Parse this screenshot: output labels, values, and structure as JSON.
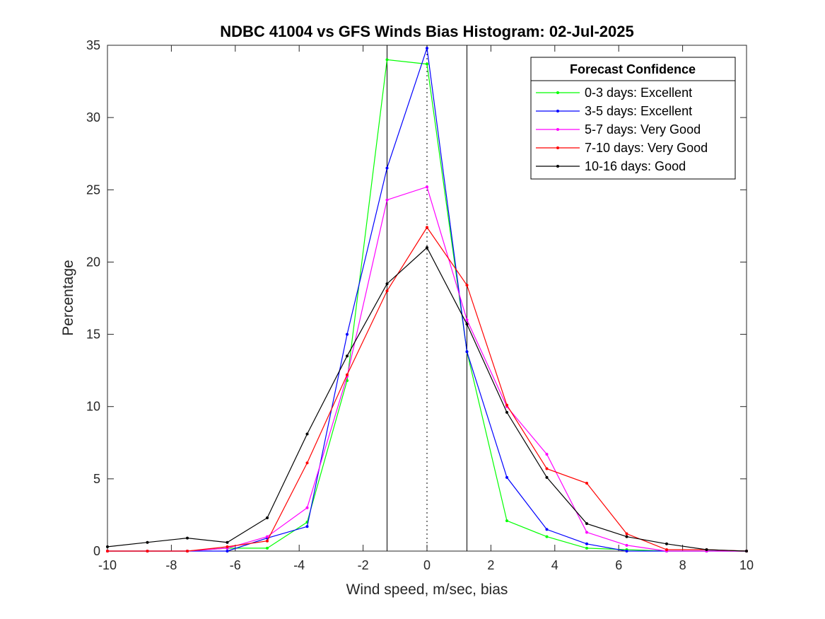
{
  "chart_data": {
    "type": "line",
    "title": "NDBC 41004 vs GFS Winds Bias Histogram: 02-Jul-2025",
    "xlabel": "Wind speed, m/sec, bias",
    "ylabel": "Percentage",
    "xlim": [
      -10,
      10
    ],
    "ylim": [
      0,
      35
    ],
    "xticks": [
      -10,
      -8,
      -6,
      -4,
      -2,
      0,
      2,
      4,
      6,
      8,
      10
    ],
    "yticks": [
      0,
      5,
      10,
      15,
      20,
      25,
      30,
      35
    ],
    "grid": false,
    "legend_title": "Forecast Confidence",
    "legend_position": "top-right",
    "vertical_lines": [
      {
        "x": -1.25,
        "style": "solid"
      },
      {
        "x": 0,
        "style": "dotted"
      },
      {
        "x": 1.25,
        "style": "solid"
      }
    ],
    "x": [
      -10,
      -8.75,
      -7.5,
      -6.25,
      -5,
      -3.75,
      -2.5,
      -1.25,
      0,
      1.25,
      2.5,
      3.75,
      5,
      6.25,
      7.5,
      8.75,
      10
    ],
    "series": [
      {
        "name": "0-3 days: Excellent",
        "color": "#00ff00",
        "values": [
          0,
          0,
          0,
          0.2,
          0.2,
          2.0,
          11.8,
          34.0,
          33.7,
          13.8,
          2.1,
          1.0,
          0.2,
          0.1,
          0,
          0,
          0
        ]
      },
      {
        "name": "3-5 days: Excellent",
        "color": "#0000ff",
        "values": [
          0,
          0,
          0,
          0,
          0.9,
          1.7,
          15.0,
          26.5,
          34.8,
          13.8,
          5.1,
          1.5,
          0.5,
          0.0,
          0,
          0,
          0
        ]
      },
      {
        "name": "5-7 days: Very Good",
        "color": "#ff00ff",
        "values": [
          0,
          0,
          0,
          0.2,
          1.0,
          3.0,
          12.1,
          24.3,
          25.2,
          16.0,
          10.0,
          6.7,
          1.3,
          0.4,
          0,
          0,
          0
        ]
      },
      {
        "name": "7-10 days: Very Good",
        "color": "#ff0000",
        "values": [
          0,
          0,
          0,
          0.3,
          0.7,
          6.1,
          12.2,
          18.0,
          22.4,
          18.4,
          10.1,
          5.7,
          4.7,
          1.2,
          0.1,
          0.1,
          0
        ]
      },
      {
        "name": "10-16 days: Good",
        "color": "#000000",
        "values": [
          0.3,
          0.6,
          0.9,
          0.6,
          2.3,
          8.1,
          13.5,
          18.5,
          21.0,
          15.7,
          9.6,
          5.1,
          1.9,
          1.0,
          0.5,
          0.1,
          0
        ]
      }
    ]
  }
}
